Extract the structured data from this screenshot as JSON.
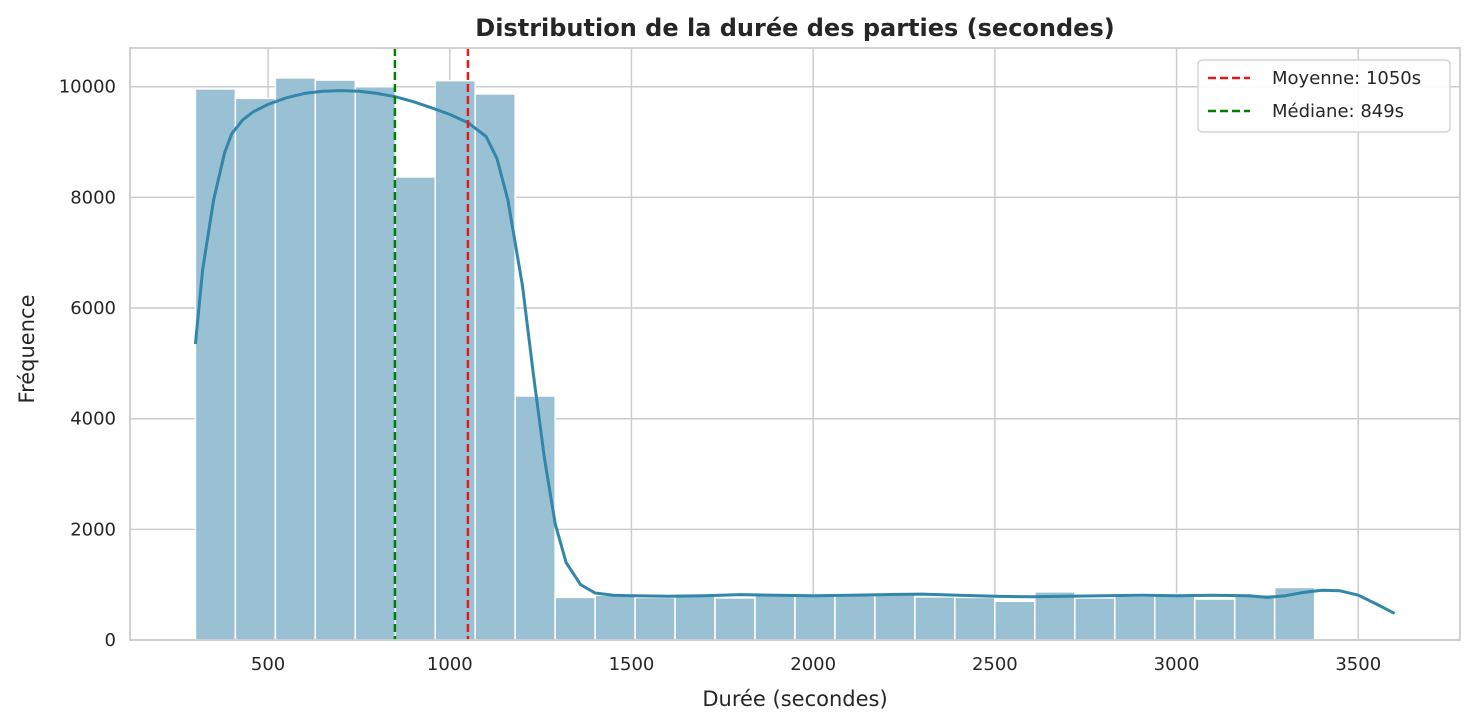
{
  "chart_data": {
    "type": "bar",
    "title": "Distribution de la durée des parties (secondes)",
    "xlabel": "Durée (secondes)",
    "ylabel": "Fréquence",
    "xlim": [
      120,
      3780
    ],
    "ylim": [
      0,
      10700
    ],
    "xticks": [
      "500",
      "1000",
      "1500",
      "2000",
      "2500",
      "3000",
      "3500"
    ],
    "xtick_values": [
      500,
      1000,
      1500,
      2000,
      2500,
      3000,
      3500
    ],
    "yticks": [
      "0",
      "2000",
      "4000",
      "6000",
      "8000",
      "10000"
    ],
    "ytick_values": [
      0,
      2000,
      4000,
      6000,
      8000,
      10000
    ],
    "grid": true,
    "legend_position": "top-right",
    "bins": {
      "start": 300,
      "width": 110,
      "counts": [
        9960,
        9790,
        10160,
        10120,
        10000,
        8370,
        10110,
        9870,
        4410,
        770,
        810,
        770,
        830,
        760,
        810,
        810,
        800,
        830,
        780,
        770,
        700,
        870,
        760,
        790,
        830,
        740,
        820,
        950
      ]
    },
    "kde": {
      "x": [
        300,
        320,
        350,
        380,
        400,
        430,
        460,
        500,
        550,
        600,
        650,
        700,
        750,
        800,
        850,
        900,
        950,
        1000,
        1050,
        1100,
        1130,
        1160,
        1200,
        1230,
        1260,
        1290,
        1320,
        1360,
        1400,
        1450,
        1500,
        1600,
        1700,
        1800,
        1900,
        2000,
        2100,
        2200,
        2300,
        2400,
        2500,
        2600,
        2700,
        2800,
        2900,
        3000,
        3100,
        3200,
        3250,
        3300,
        3350,
        3400,
        3450,
        3500,
        3550,
        3600
      ],
      "y": [
        5350,
        6700,
        7950,
        8800,
        9150,
        9400,
        9550,
        9680,
        9800,
        9880,
        9920,
        9930,
        9920,
        9880,
        9820,
        9730,
        9620,
        9500,
        9350,
        9100,
        8700,
        7950,
        6400,
        4800,
        3300,
        2100,
        1400,
        1000,
        850,
        810,
        800,
        790,
        800,
        820,
        810,
        800,
        810,
        820,
        830,
        810,
        790,
        780,
        790,
        800,
        810,
        800,
        810,
        800,
        770,
        800,
        860,
        900,
        890,
        810,
        650,
        480
      ]
    },
    "series": [
      {
        "name": "Moyenne: 1050s",
        "value": 1050,
        "color": "#e41a1c"
      },
      {
        "name": "Médiane: 849s",
        "value": 849,
        "color": "#008000"
      }
    ],
    "bar_color": "#99c1d3",
    "kde_color": "#3286a9"
  }
}
